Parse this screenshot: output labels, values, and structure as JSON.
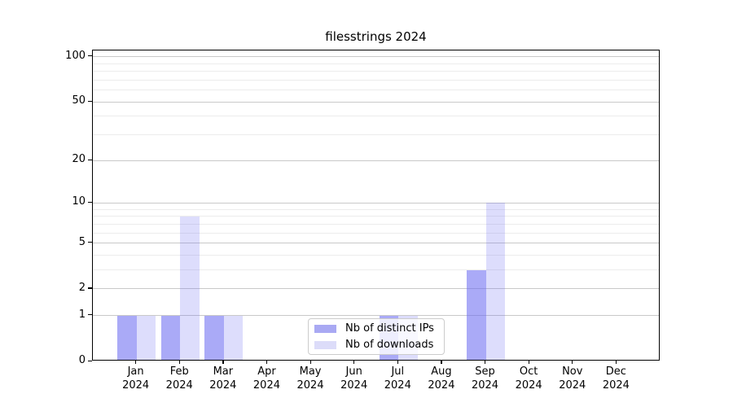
{
  "chart_data": {
    "type": "bar",
    "title": "filesstrings 2024",
    "categories": [
      "Jan",
      "Feb",
      "Mar",
      "Apr",
      "May",
      "Jun",
      "Jul",
      "Aug",
      "Sep",
      "Oct",
      "Nov",
      "Dec"
    ],
    "x_tick_second_line": "2024",
    "series": [
      {
        "name": "Nb of distinct IPs",
        "values": [
          1,
          1,
          1,
          0,
          0,
          0,
          1,
          0,
          3,
          0,
          0,
          0
        ],
        "fill": "rgba(100,100,240,0.55)",
        "swatch": "#a9a9f3"
      },
      {
        "name": "Nb of downloads",
        "values": [
          1,
          8,
          1,
          0,
          0,
          0,
          1,
          0,
          10,
          0,
          0,
          0
        ],
        "fill": "rgba(100,100,240,0.22)",
        "swatch": "#dcdcf9"
      }
    ],
    "xlabel": "",
    "ylabel": "",
    "y_scale": "log1p",
    "ylim": [
      0,
      110
    ],
    "y_major_ticks": [
      0,
      1,
      2,
      5,
      10,
      20,
      50,
      100
    ],
    "y_tick_labels": [
      "0",
      "1",
      "2",
      "5",
      "10",
      "20",
      "50",
      "100"
    ],
    "y_minor_gridlines": [
      3,
      4,
      6,
      7,
      8,
      9,
      30,
      40,
      60,
      70,
      80,
      90
    ],
    "grid": true,
    "legend_position": "lower-center-inside"
  },
  "colors": {
    "grid_major": "#c9c9c9",
    "grid_minor": "#ececec",
    "axis": "#000000",
    "background": "#ffffff"
  }
}
